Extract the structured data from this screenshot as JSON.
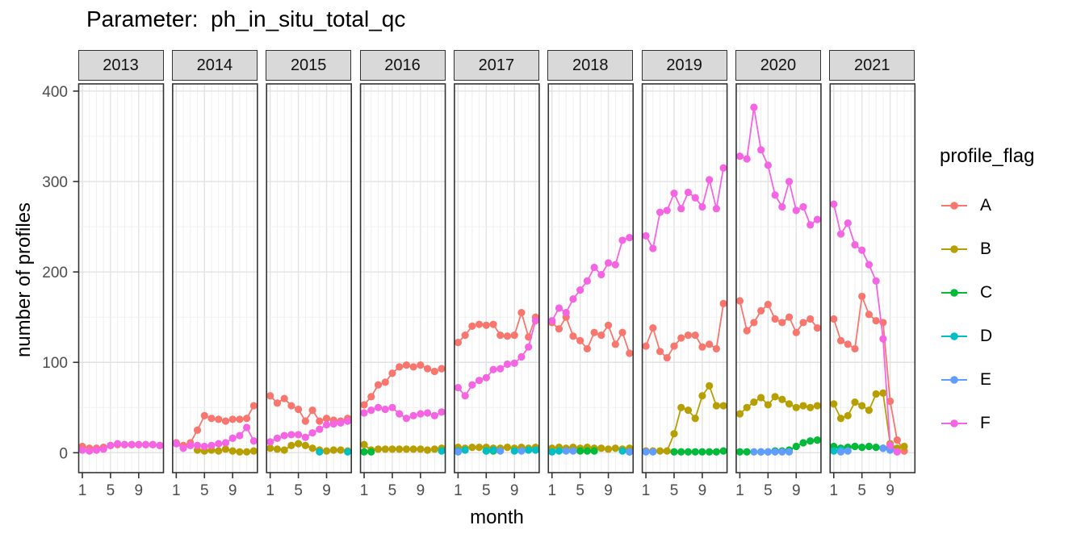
{
  "title": "Parameter:  ph_in_situ_total_qc",
  "axes": {
    "y_label": "number of profiles",
    "x_label": "month",
    "y_ticks": [
      0,
      100,
      200,
      300,
      400
    ],
    "x_ticks": [
      1,
      5,
      9
    ]
  },
  "legend": {
    "title": "profile_flag",
    "position": "right",
    "items": [
      {
        "label": "A",
        "color": "#F8766D"
      },
      {
        "label": "B",
        "color": "#B79F00"
      },
      {
        "label": "C",
        "color": "#00BA38"
      },
      {
        "label": "D",
        "color": "#00BFC4"
      },
      {
        "label": "E",
        "color": "#619CFF"
      },
      {
        "label": "F",
        "color": "#F564E3"
      }
    ]
  },
  "chart_data": {
    "type": "line",
    "title": "Parameter:  ph_in_situ_total_qc",
    "xlabel": "month",
    "ylabel": "number of profiles",
    "facet_by": "year",
    "x": [
      1,
      2,
      3,
      4,
      5,
      6,
      7,
      8,
      9,
      10,
      11,
      12
    ],
    "ylim": [
      -22,
      408
    ],
    "y_major_gridlines": [
      0,
      100,
      200,
      300,
      400
    ],
    "y_minor_gridlines": [
      50,
      150,
      250,
      350
    ],
    "x_tick_months": [
      1,
      5,
      9
    ],
    "grid": true,
    "draw_order": [
      "A",
      "B",
      "C",
      "D",
      "E",
      "F"
    ],
    "facets": [
      {
        "year": "2013",
        "series": {
          "A": [
            7,
            5,
            5,
            6,
            8,
            9,
            9,
            9,
            9,
            9,
            9,
            8
          ],
          "F": [
            3,
            2,
            3,
            4,
            8,
            10,
            9,
            9,
            9,
            9,
            9,
            8
          ]
        }
      },
      {
        "year": "2014",
        "series": {
          "A": [
            11,
            8,
            11,
            25,
            41,
            38,
            37,
            35,
            37,
            37,
            38,
            52
          ],
          "B": [
            null,
            null,
            null,
            3,
            2,
            3,
            2,
            4,
            2,
            1,
            1,
            2
          ],
          "F": [
            10,
            5,
            8,
            8,
            7,
            8,
            10,
            11,
            16,
            19,
            28,
            13
          ]
        }
      },
      {
        "year": "2015",
        "series": {
          "A": [
            63,
            55,
            60,
            52,
            48,
            35,
            47,
            35,
            38,
            36,
            35,
            38
          ],
          "B": [
            5,
            4,
            3,
            8,
            10,
            8,
            5,
            3,
            2,
            3,
            3,
            2
          ],
          "D": [
            null,
            null,
            null,
            null,
            null,
            null,
            null,
            1,
            null,
            null,
            null,
            1
          ],
          "F": [
            12,
            16,
            19,
            20,
            20,
            17,
            22,
            26,
            31,
            32,
            33,
            35
          ]
        }
      },
      {
        "year": "2016",
        "series": {
          "A": [
            53,
            62,
            75,
            78,
            88,
            95,
            97,
            95,
            97,
            93,
            90,
            93
          ],
          "B": [
            9,
            3,
            4,
            4,
            4,
            4,
            4,
            4,
            4,
            3,
            4,
            5
          ],
          "C": [
            1,
            1,
            null,
            null,
            null,
            null,
            null,
            null,
            null,
            null,
            null,
            null
          ],
          "D": [
            null,
            null,
            null,
            null,
            null,
            null,
            null,
            null,
            null,
            null,
            null,
            2
          ],
          "F": [
            44,
            47,
            50,
            48,
            50,
            43,
            38,
            41,
            43,
            44,
            41,
            45
          ]
        }
      },
      {
        "year": "2017",
        "series": {
          "A": [
            122,
            130,
            140,
            142,
            141,
            142,
            130,
            129,
            130,
            155,
            128,
            150
          ],
          "B": [
            6,
            5,
            6,
            6,
            6,
            5,
            5,
            6,
            5,
            6,
            5,
            6
          ],
          "C": [
            null,
            null,
            null,
            null,
            2,
            2,
            null,
            null,
            null,
            null,
            null,
            null
          ],
          "D": [
            2,
            3,
            null,
            null,
            2,
            3,
            null,
            null,
            2,
            null,
            3,
            3
          ],
          "E": [
            1,
            null,
            null,
            null,
            null,
            null,
            2,
            null,
            null,
            2,
            null,
            null
          ],
          "F": [
            72,
            63,
            75,
            80,
            83,
            92,
            93,
            98,
            99,
            106,
            117,
            146
          ]
        }
      },
      {
        "year": "2018",
        "series": {
          "A": [
            144,
            137,
            150,
            129,
            124,
            115,
            133,
            130,
            141,
            120,
            133,
            110
          ],
          "B": [
            5,
            6,
            5,
            6,
            5,
            6,
            5,
            5,
            4,
            5,
            4,
            5
          ],
          "C": [
            null,
            null,
            null,
            null,
            2,
            2,
            2,
            null,
            null,
            null,
            null,
            1
          ],
          "D": [
            1,
            2,
            null,
            null,
            null,
            null,
            null,
            null,
            null,
            null,
            2,
            null
          ],
          "E": [
            null,
            null,
            2,
            2,
            null,
            null,
            null,
            null,
            null,
            null,
            null,
            1
          ],
          "F": [
            146,
            160,
            155,
            170,
            180,
            190,
            205,
            197,
            210,
            208,
            235,
            238
          ]
        }
      },
      {
        "year": "2019",
        "series": {
          "A": [
            118,
            138,
            112,
            105,
            118,
            127,
            130,
            130,
            117,
            120,
            115,
            165
          ],
          "B": [
            2,
            2,
            2,
            2,
            21,
            50,
            47,
            38,
            63,
            74,
            52,
            52
          ],
          "C": [
            null,
            null,
            null,
            null,
            1,
            1,
            1,
            1,
            1,
            1,
            1,
            2
          ],
          "E": [
            1,
            1,
            null,
            null,
            null,
            null,
            null,
            null,
            null,
            null,
            null,
            null
          ],
          "F": [
            240,
            226,
            266,
            268,
            287,
            270,
            288,
            282,
            272,
            302,
            270,
            315
          ]
        }
      },
      {
        "year": "2020",
        "series": {
          "A": [
            168,
            135,
            144,
            157,
            164,
            148,
            144,
            150,
            133,
            144,
            148,
            138
          ],
          "B": [
            43,
            50,
            56,
            61,
            53,
            62,
            59,
            54,
            50,
            52,
            50,
            52
          ],
          "C": [
            1,
            1,
            null,
            null,
            null,
            2,
            2,
            3,
            7,
            11,
            13,
            14
          ],
          "D": [
            null,
            null,
            null,
            1,
            1,
            null,
            null,
            null,
            null,
            null,
            null,
            null
          ],
          "E": [
            null,
            null,
            1,
            1,
            1,
            1,
            1,
            1,
            null,
            null,
            null,
            null
          ],
          "F": [
            328,
            325,
            382,
            335,
            318,
            285,
            272,
            300,
            268,
            272,
            252,
            258
          ]
        }
      },
      {
        "year": "2021",
        "series": {
          "A": [
            148,
            124,
            120,
            115,
            173,
            153,
            146,
            144,
            57,
            14,
            2,
            null
          ],
          "B": [
            54,
            38,
            41,
            56,
            52,
            47,
            65,
            66,
            10,
            5,
            7,
            null
          ],
          "C": [
            7,
            5,
            6,
            7,
            6,
            7,
            6,
            5,
            6,
            null,
            null,
            null
          ],
          "D": [
            2,
            3,
            null,
            null,
            null,
            null,
            null,
            null,
            null,
            null,
            null,
            null
          ],
          "E": [
            null,
            1,
            2,
            null,
            null,
            null,
            null,
            5,
            3,
            null,
            null,
            null
          ],
          "F": [
            275,
            242,
            254,
            230,
            224,
            208,
            190,
            126,
            8,
            1,
            null,
            null
          ]
        }
      }
    ]
  }
}
